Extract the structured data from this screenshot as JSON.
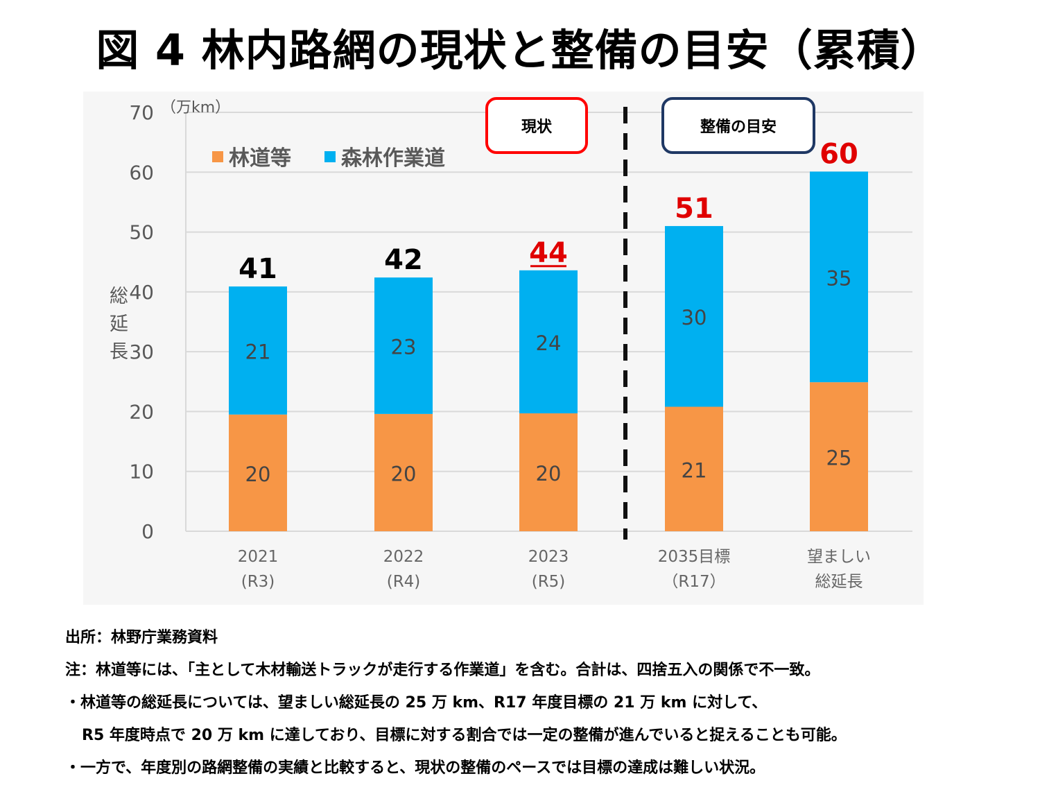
{
  "title": "図 4 林内路網の現状と整備の目安（累積）",
  "chart_data": {
    "type": "bar",
    "stacked": true,
    "title": "",
    "unit_label": "（万km）",
    "ylabel": "総延長",
    "xlabel": "",
    "ylim": [
      0,
      70
    ],
    "yticks": [
      "0",
      "10",
      "20",
      "30",
      "40",
      "50",
      "60",
      "70"
    ],
    "grid": true,
    "legend_position": "top-left",
    "categories": [
      [
        "2021",
        "(R3)"
      ],
      [
        "2022",
        "(R4)"
      ],
      [
        "2023",
        "(R5)"
      ],
      [
        "2035目標",
        "（R17）"
      ],
      [
        "望ましい",
        "総延長"
      ]
    ],
    "series": [
      {
        "name": "林道等",
        "color": "#f79646",
        "values": [
          19.5,
          19.6,
          19.7,
          20.8,
          24.9
        ],
        "labels": [
          "20",
          "20",
          "20",
          "21",
          "25"
        ]
      },
      {
        "name": "森林作業道",
        "color": "#00b0f0",
        "values": [
          21.4,
          22.8,
          23.9,
          30.2,
          35.2
        ],
        "labels": [
          "21",
          "23",
          "24",
          "30",
          "35"
        ]
      }
    ],
    "totals": [
      "41",
      "42",
      "44",
      "51",
      "60"
    ],
    "total_colors": [
      "#000000",
      "#000000",
      "#e00000",
      "#e00000",
      "#e00000"
    ],
    "underline_total_index": 2,
    "colors": {
      "axis": "#d9d9d9",
      "grid": "#d9d9d9",
      "red_box": "#ff0000",
      "navy_box": "#1f3864"
    },
    "annotations": {
      "current_box": "現状",
      "target_box": "整備の目安",
      "divider_between": [
        2,
        3
      ]
    }
  },
  "notes": {
    "source": "出所：林野庁業務資料",
    "note": "注：林道等には、「主として木材輸送トラックが走行する作業道」を含む。合計は、四捨五入の関係で不一致。",
    "bullet1": "・林道等の総延長については、望ましい総延長の 25 万 km、R17 年度目標の 21 万 km に対して、",
    "bullet1_cont": "R5 年度時点で 20 万 km に達しており、目標に対する割合では一定の整備が進んでいると捉えることも可能。",
    "bullet2": "・一方で、年度別の路網整備の実績と比較すると、現状の整備のペースでは目標の達成は難しい状況。"
  }
}
